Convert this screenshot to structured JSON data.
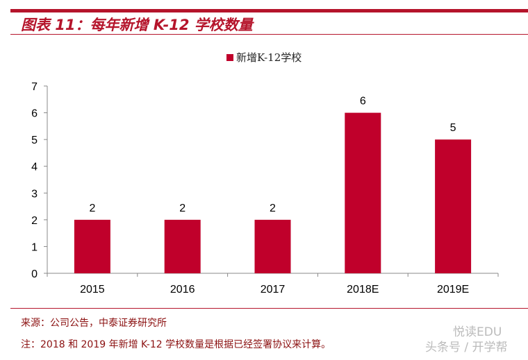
{
  "header": {
    "title": "图表 11：每年新增 K-12 学校数量"
  },
  "chart_data": {
    "type": "bar",
    "categories": [
      "2015",
      "2016",
      "2017",
      "2018E",
      "2019E"
    ],
    "series": [
      {
        "name": "新增K-12学校",
        "values": [
          2,
          2,
          2,
          6,
          5
        ]
      }
    ],
    "ylim": [
      0,
      7
    ],
    "yticks": [
      0,
      1,
      2,
      3,
      4,
      5,
      6,
      7
    ],
    "data_labels": true,
    "grid": false,
    "legend": "top",
    "color": "#c0002b"
  },
  "footer": {
    "source": "来源：公司公告，中泰证券研究所",
    "note": "注：2018 和 2019 年新增 K-12 学校数量是根据已经签署协议来计算。"
  },
  "watermark": {
    "line1": "悦读EDU",
    "line2": "头条号 / 开学帮"
  }
}
